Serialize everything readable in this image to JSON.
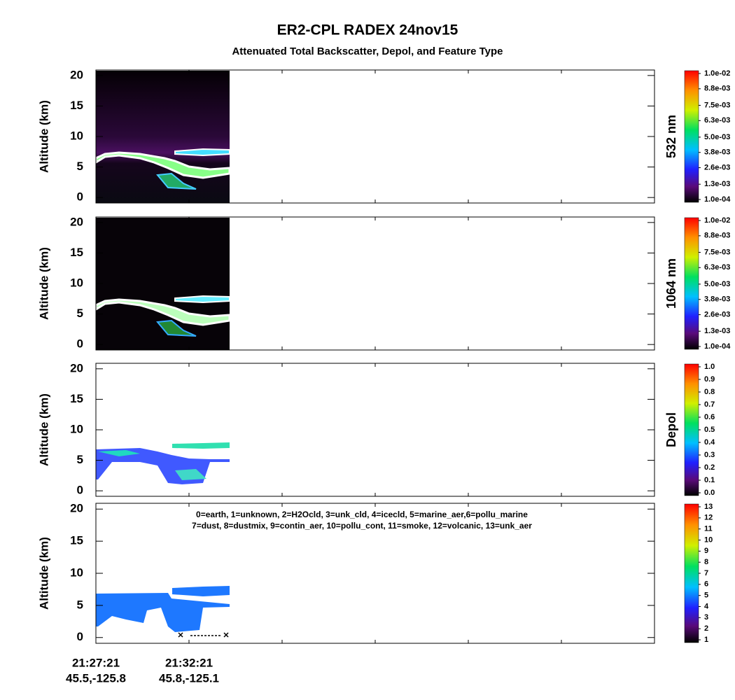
{
  "title": "ER2-CPL  RADEX  24nov15",
  "subtitle": "Attenuated Total Backscatter, Depol, and Feature Type",
  "chart_data": [
    {
      "type": "heatmap",
      "ylabel": "Altitude (km)",
      "ylim": [
        -0.9,
        20.9
      ],
      "yticks": [
        0,
        5,
        10,
        15,
        20
      ],
      "colorbar_label": "532 nm",
      "clim": [
        0.0001,
        0.01
      ],
      "colorbar_ticks": [
        {
          "value": 0.0001,
          "label": "1.0e-04"
        },
        {
          "value": 0.0013,
          "label": "1.3e-03"
        },
        {
          "value": 0.0026,
          "label": "2.6e-03"
        },
        {
          "value": 0.0038,
          "label": "3.8e-03"
        },
        {
          "value": 0.005,
          "label": "5.0e-03"
        },
        {
          "value": 0.0063,
          "label": "6.3e-03"
        },
        {
          "value": 0.0075,
          "label": "7.5e-03"
        },
        {
          "value": 0.0088,
          "label": "8.8e-03"
        },
        {
          "value": 0.01,
          "label": "1.0e-02"
        }
      ]
    },
    {
      "type": "heatmap",
      "ylabel": "Altitude (km)",
      "ylim": [
        -0.9,
        20.9
      ],
      "yticks": [
        0,
        5,
        10,
        15,
        20
      ],
      "colorbar_label": "1064 nm",
      "clim": [
        0.0001,
        0.01
      ],
      "colorbar_ticks": [
        {
          "value": 0.0001,
          "label": "1.0e-04"
        },
        {
          "value": 0.0013,
          "label": "1.3e-03"
        },
        {
          "value": 0.0026,
          "label": "2.6e-03"
        },
        {
          "value": 0.0038,
          "label": "3.8e-03"
        },
        {
          "value": 0.005,
          "label": "5.0e-03"
        },
        {
          "value": 0.0063,
          "label": "6.3e-03"
        },
        {
          "value": 0.0075,
          "label": "7.5e-03"
        },
        {
          "value": 0.0088,
          "label": "8.8e-03"
        },
        {
          "value": 0.01,
          "label": "1.0e-02"
        }
      ]
    },
    {
      "type": "heatmap",
      "ylabel": "Altitude (km)",
      "ylim": [
        -0.9,
        20.9
      ],
      "yticks": [
        0,
        5,
        10,
        15,
        20
      ],
      "colorbar_label": "Depol",
      "clim": [
        0,
        1
      ],
      "colorbar_ticks": [
        {
          "value": 0,
          "label": "0.0"
        },
        {
          "value": 0.1,
          "label": "0.1"
        },
        {
          "value": 0.2,
          "label": "0.2"
        },
        {
          "value": 0.3,
          "label": "0.3"
        },
        {
          "value": 0.4,
          "label": "0.4"
        },
        {
          "value": 0.5,
          "label": "0.5"
        },
        {
          "value": 0.6,
          "label": "0.6"
        },
        {
          "value": 0.7,
          "label": "0.7"
        },
        {
          "value": 0.8,
          "label": "0.8"
        },
        {
          "value": 0.9,
          "label": "0.9"
        },
        {
          "value": 1,
          "label": "1.0"
        }
      ]
    },
    {
      "type": "heatmap",
      "ylabel": "Altitude (km)",
      "ylim": [
        -0.9,
        20.9
      ],
      "yticks": [
        0,
        5,
        10,
        15,
        20
      ],
      "clim": [
        1,
        13
      ],
      "colorbar_ticks": [
        1,
        2,
        3,
        4,
        5,
        6,
        7,
        8,
        9,
        10,
        11,
        12,
        13
      ],
      "legend_lines": [
        "0=earth, 1=unknown, 2=H2Ocld, 3=unk_cld, 4=icecld, 5=marine_aer,6=pollu_marine",
        "7=dust, 8=dustmix, 9=contin_aer, 10=pollu_cont, 11=smoke, 12=volcanic, 13=unk_aer"
      ],
      "xtick_labels": [
        [
          "21:27:21",
          "45.5,-125.8"
        ],
        [
          "21:32:21",
          "45.8,-125.1"
        ]
      ]
    }
  ]
}
